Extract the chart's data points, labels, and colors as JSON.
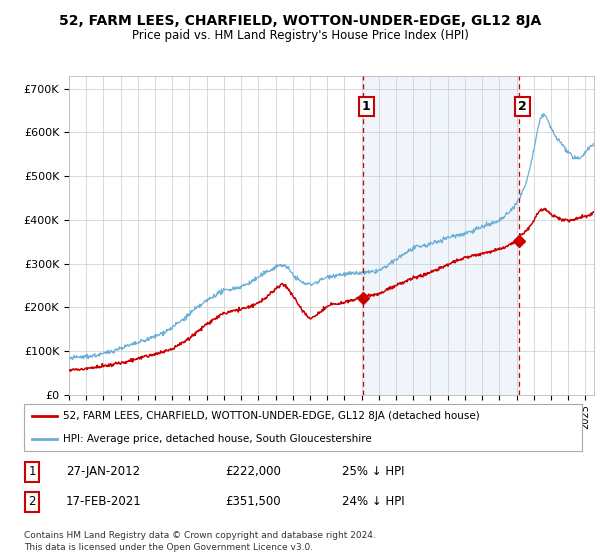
{
  "title": "52, FARM LEES, CHARFIELD, WOTTON-UNDER-EDGE, GL12 8JA",
  "subtitle": "Price paid vs. HM Land Registry's House Price Index (HPI)",
  "ylabel_ticks": [
    "£0",
    "£100K",
    "£200K",
    "£300K",
    "£400K",
    "£500K",
    "£600K",
    "£700K"
  ],
  "ytick_values": [
    0,
    100000,
    200000,
    300000,
    400000,
    500000,
    600000,
    700000
  ],
  "ylim": [
    0,
    730000
  ],
  "xlim_start": 1995.0,
  "xlim_end": 2025.5,
  "hpi_color": "#6aafd6",
  "hpi_fill_color": "#ddeeff",
  "price_color": "#cc0000",
  "marker1_date": 2012.07,
  "marker1_price": 222000,
  "marker1_label": "27-JAN-2012",
  "marker1_value": "£222,000",
  "marker1_hpi": "25% ↓ HPI",
  "marker2_date": 2021.12,
  "marker2_price": 351500,
  "marker2_label": "17-FEB-2021",
  "marker2_value": "£351,500",
  "marker2_hpi": "24% ↓ HPI",
  "legend_line1": "52, FARM LEES, CHARFIELD, WOTTON-UNDER-EDGE, GL12 8JA (detached house)",
  "legend_line2": "HPI: Average price, detached house, South Gloucestershire",
  "footer1": "Contains HM Land Registry data © Crown copyright and database right 2024.",
  "footer2": "This data is licensed under the Open Government Licence v3.0.",
  "background_color": "#ffffff",
  "grid_color": "#cccccc"
}
